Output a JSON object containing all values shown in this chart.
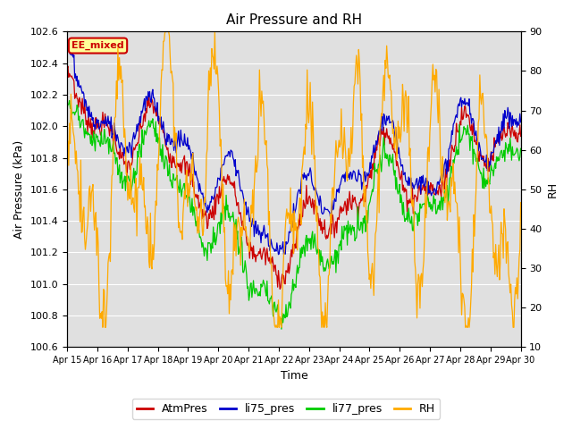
{
  "title": "Air Pressure and RH",
  "xlabel": "Time",
  "ylabel_left": "Air Pressure (kPa)",
  "ylabel_right": "RH",
  "ylim_left": [
    100.6,
    102.6
  ],
  "ylim_right": [
    10,
    90
  ],
  "yticks_left": [
    100.6,
    100.8,
    101.0,
    101.2,
    101.4,
    101.6,
    101.8,
    102.0,
    102.2,
    102.4,
    102.6
  ],
  "yticks_right": [
    10,
    20,
    30,
    40,
    50,
    60,
    70,
    80,
    90
  ],
  "xtick_labels": [
    "Apr 15",
    "Apr 16",
    "Apr 17",
    "Apr 18",
    "Apr 19",
    "Apr 20",
    "Apr 21",
    "Apr 22",
    "Apr 23",
    "Apr 24",
    "Apr 25",
    "Apr 26",
    "Apr 27",
    "Apr 28",
    "Apr 29",
    "Apr 30"
  ],
  "n_points": 600,
  "annotation_text": "EE_mixed",
  "annotation_color": "#cc0000",
  "annotation_bg": "#ffff99",
  "line_colors": {
    "AtmPres": "#cc0000",
    "li75_pres": "#0000cc",
    "li77_pres": "#00cc00",
    "RH": "#ffaa00"
  },
  "legend_labels": [
    "AtmPres",
    "li75_pres",
    "li77_pres",
    "RH"
  ],
  "background_color": "#e0e0e0",
  "grid_color": "#ffffff",
  "fig_width": 6.4,
  "fig_height": 4.8,
  "dpi": 100
}
